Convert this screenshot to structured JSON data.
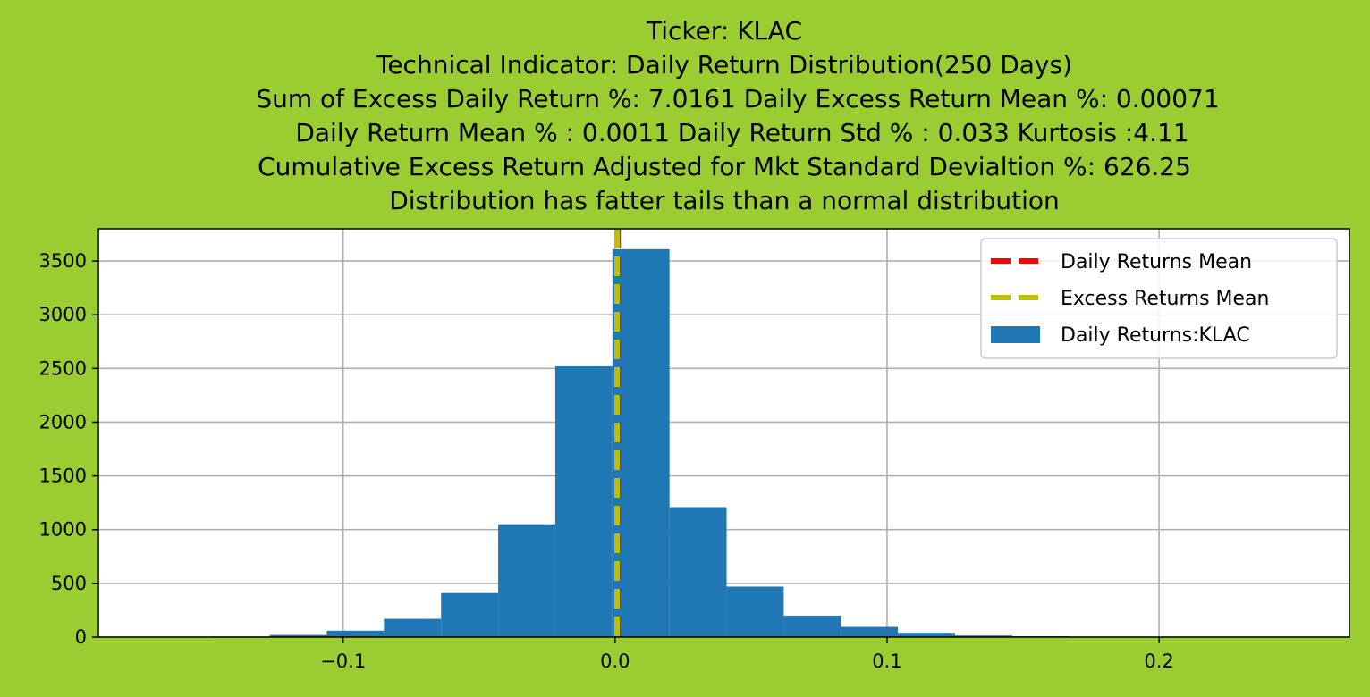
{
  "background_color": "#9acd32",
  "chart_data": {
    "type": "bar",
    "subtype": "histogram",
    "title_lines": [
      "Ticker: KLAC",
      "Technical Indicator: Daily Return Distribution(250 Days)",
      "Sum of Excess Daily Return %: 7.0161   Daily Excess Return Mean %: 0.00071",
      "Daily Return Mean % : 0.0011    Daily Return Std % : 0.033  Kurtosis :4.11",
      "Cumulative Excess Return Adjusted for Mkt Standard Devialtion %: 626.25",
      "Distribution has fatter tails than a normal distribution"
    ],
    "xlabel": "",
    "ylabel": "",
    "xlim": [
      -0.19,
      0.27
    ],
    "ylim": [
      0,
      3800
    ],
    "x_ticks": [
      -0.1,
      0.0,
      0.1,
      0.2
    ],
    "x_tick_labels": [
      "−0.1",
      "0.0",
      "0.1",
      "0.2"
    ],
    "y_ticks": [
      0,
      500,
      1000,
      1500,
      2000,
      2500,
      3000,
      3500
    ],
    "y_tick_labels": [
      "0",
      "500",
      "1000",
      "1500",
      "2000",
      "2500",
      "3000",
      "3500"
    ],
    "grid": true,
    "legend_position": "top-right",
    "series": [
      {
        "name": "Daily Returns:KLAC",
        "color": "#1f77b4",
        "bin_edges": [
          -0.148,
          -0.127,
          -0.106,
          -0.085,
          -0.064,
          -0.043,
          -0.022,
          -0.001,
          0.02,
          0.041,
          0.062,
          0.083,
          0.104,
          0.125,
          0.146,
          0.167
        ],
        "counts": [
          5,
          20,
          60,
          170,
          410,
          1050,
          2520,
          3610,
          1210,
          470,
          200,
          95,
          40,
          15,
          8
        ]
      }
    ],
    "reference_lines": [
      {
        "name": "Daily Returns Mean",
        "color": "#ff0000",
        "style": "dashed",
        "x": 0.0011
      },
      {
        "name": "Excess Returns Mean",
        "color": "#bfbf00",
        "style": "dashed",
        "x": 0.00071
      }
    ],
    "legend": [
      {
        "label": "Daily Returns Mean",
        "kind": "line",
        "color": "#ff0000"
      },
      {
        "label": "Excess Returns Mean",
        "kind": "line",
        "color": "#bfbf00"
      },
      {
        "label": "Daily Returns:KLAC",
        "kind": "patch",
        "color": "#1f77b4"
      }
    ]
  }
}
